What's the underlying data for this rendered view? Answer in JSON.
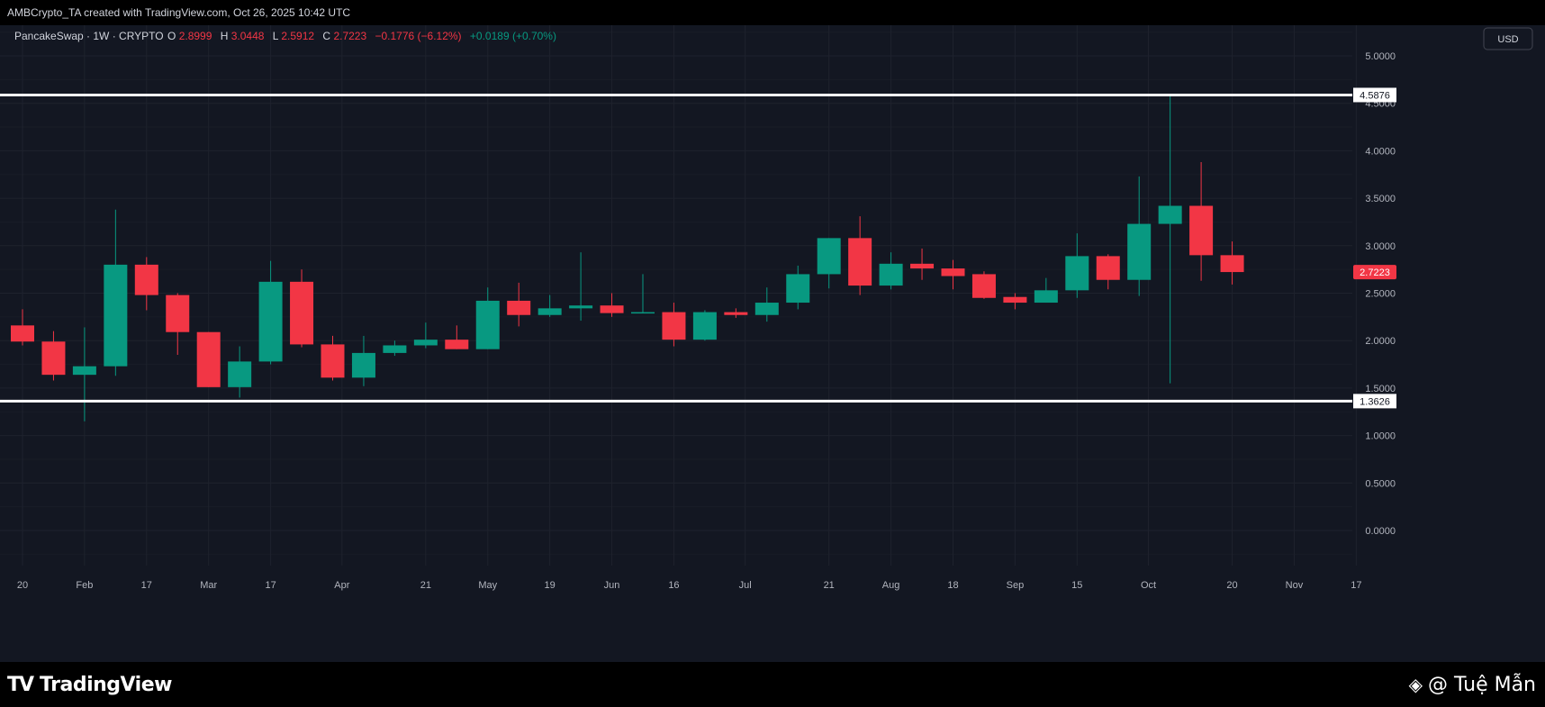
{
  "header": {
    "attribution": "AMBCrypto_TA created with TradingView.com, Oct 26, 2025 10:42 UTC"
  },
  "legend": {
    "symbol": "PancakeSwap · 1W · CRYPTO",
    "o_label": "O",
    "o_value": "2.8999",
    "h_label": "H",
    "h_value": "3.0448",
    "l_label": "L",
    "l_value": "2.5912",
    "c_label": "C",
    "c_value": "2.7223",
    "change": "−0.1776 (−6.12%)",
    "volume_change": "+0.0189 (+0.70%)"
  },
  "currency_button": "USD",
  "colors": {
    "background": "#131722",
    "grid": "#1e222d",
    "up": "#089981",
    "down": "#f23645",
    "axis_text": "#b2b5be",
    "level_line": "#ffffff"
  },
  "chart_data": {
    "type": "candlestick",
    "title": "",
    "ylim": [
      -0.5,
      5.5
    ],
    "yticks": [
      "5.0000",
      "4.5000",
      "4.0000",
      "3.5000",
      "3.0000",
      "2.5000",
      "2.0000",
      "1.5000",
      "1.0000",
      "0.5000",
      "0.0000"
    ],
    "ytick_values": [
      5.0,
      4.5,
      4.0,
      3.5,
      3.0,
      2.5,
      2.0,
      1.5,
      1.0,
      0.5,
      0.0
    ],
    "xticks": [
      {
        "label": "20",
        "bar": 0
      },
      {
        "label": "Feb",
        "bar": 2
      },
      {
        "label": "17",
        "bar": 4
      },
      {
        "label": "Mar",
        "bar": 6
      },
      {
        "label": "17",
        "bar": 8
      },
      {
        "label": "Apr",
        "bar": 10.3
      },
      {
        "label": "21",
        "bar": 13
      },
      {
        "label": "May",
        "bar": 15
      },
      {
        "label": "19",
        "bar": 17
      },
      {
        "label": "Jun",
        "bar": 19
      },
      {
        "label": "16",
        "bar": 21
      },
      {
        "label": "Jul",
        "bar": 23.3
      },
      {
        "label": "21",
        "bar": 26
      },
      {
        "label": "Aug",
        "bar": 28
      },
      {
        "label": "18",
        "bar": 30
      },
      {
        "label": "Sep",
        "bar": 32
      },
      {
        "label": "15",
        "bar": 34
      },
      {
        "label": "Oct",
        "bar": 36.3
      },
      {
        "label": "20",
        "bar": 39
      },
      {
        "label": "Nov",
        "bar": 41
      },
      {
        "label": "17",
        "bar": 43
      }
    ],
    "candles": [
      {
        "o": 2.16,
        "h": 2.33,
        "l": 1.95,
        "c": 1.99
      },
      {
        "o": 1.99,
        "h": 2.1,
        "l": 1.58,
        "c": 1.64
      },
      {
        "o": 1.64,
        "h": 2.14,
        "l": 1.15,
        "c": 1.73
      },
      {
        "o": 1.73,
        "h": 3.38,
        "l": 1.63,
        "c": 2.8
      },
      {
        "o": 2.8,
        "h": 2.88,
        "l": 2.32,
        "c": 2.48
      },
      {
        "o": 2.48,
        "h": 2.5,
        "l": 1.85,
        "c": 2.09
      },
      {
        "o": 2.09,
        "h": 2.09,
        "l": 1.51,
        "c": 1.51
      },
      {
        "o": 1.51,
        "h": 1.94,
        "l": 1.4,
        "c": 1.78
      },
      {
        "o": 1.78,
        "h": 2.84,
        "l": 1.75,
        "c": 2.62
      },
      {
        "o": 2.62,
        "h": 2.75,
        "l": 1.93,
        "c": 1.96
      },
      {
        "o": 1.96,
        "h": 2.05,
        "l": 1.58,
        "c": 1.61
      },
      {
        "o": 1.61,
        "h": 2.05,
        "l": 1.52,
        "c": 1.87
      },
      {
        "o": 1.87,
        "h": 2.0,
        "l": 1.84,
        "c": 1.95
      },
      {
        "o": 1.95,
        "h": 2.19,
        "l": 1.92,
        "c": 2.01
      },
      {
        "o": 2.01,
        "h": 2.16,
        "l": 1.91,
        "c": 1.91
      },
      {
        "o": 1.91,
        "h": 2.56,
        "l": 1.91,
        "c": 2.42
      },
      {
        "o": 2.42,
        "h": 2.61,
        "l": 2.15,
        "c": 2.27
      },
      {
        "o": 2.27,
        "h": 2.48,
        "l": 2.25,
        "c": 2.34
      },
      {
        "o": 2.34,
        "h": 2.93,
        "l": 2.21,
        "c": 2.37
      },
      {
        "o": 2.37,
        "h": 2.5,
        "l": 2.25,
        "c": 2.29
      },
      {
        "o": 2.29,
        "h": 2.7,
        "l": 2.29,
        "c": 2.3
      },
      {
        "o": 2.3,
        "h": 2.4,
        "l": 1.94,
        "c": 2.01
      },
      {
        "o": 2.01,
        "h": 2.32,
        "l": 2.0,
        "c": 2.3
      },
      {
        "o": 2.3,
        "h": 2.34,
        "l": 2.24,
        "c": 2.27
      },
      {
        "o": 2.27,
        "h": 2.56,
        "l": 2.2,
        "c": 2.4
      },
      {
        "o": 2.4,
        "h": 2.79,
        "l": 2.33,
        "c": 2.7
      },
      {
        "o": 2.7,
        "h": 3.08,
        "l": 2.55,
        "c": 3.08
      },
      {
        "o": 3.08,
        "h": 3.31,
        "l": 2.48,
        "c": 2.58
      },
      {
        "o": 2.58,
        "h": 2.93,
        "l": 2.54,
        "c": 2.81
      },
      {
        "o": 2.81,
        "h": 2.97,
        "l": 2.64,
        "c": 2.76
      },
      {
        "o": 2.76,
        "h": 2.85,
        "l": 2.54,
        "c": 2.68
      },
      {
        "o": 2.7,
        "h": 2.73,
        "l": 2.44,
        "c": 2.45
      },
      {
        "o": 2.46,
        "h": 2.5,
        "l": 2.33,
        "c": 2.4
      },
      {
        "o": 2.4,
        "h": 2.66,
        "l": 2.4,
        "c": 2.53
      },
      {
        "o": 2.53,
        "h": 3.13,
        "l": 2.45,
        "c": 2.89
      },
      {
        "o": 2.89,
        "h": 2.91,
        "l": 2.54,
        "c": 2.64
      },
      {
        "o": 2.64,
        "h": 3.73,
        "l": 2.47,
        "c": 3.23
      },
      {
        "o": 3.23,
        "h": 4.59,
        "l": 1.55,
        "c": 3.42
      },
      {
        "o": 3.42,
        "h": 3.88,
        "l": 2.63,
        "c": 2.9
      },
      {
        "o": 2.8999,
        "h": 3.0448,
        "l": 2.5912,
        "c": 2.7223
      }
    ],
    "levels": [
      {
        "value": 4.5876,
        "label": "4.5876"
      },
      {
        "value": 1.3626,
        "label": "1.3626"
      }
    ],
    "last_price": {
      "value": 2.7223,
      "label": "2.7223"
    }
  },
  "footer": {
    "logo_mark": "TV",
    "logo_text": "TradingView",
    "watermark_symbol": "◈",
    "watermark_text": "@ Tuệ Mẫn"
  }
}
